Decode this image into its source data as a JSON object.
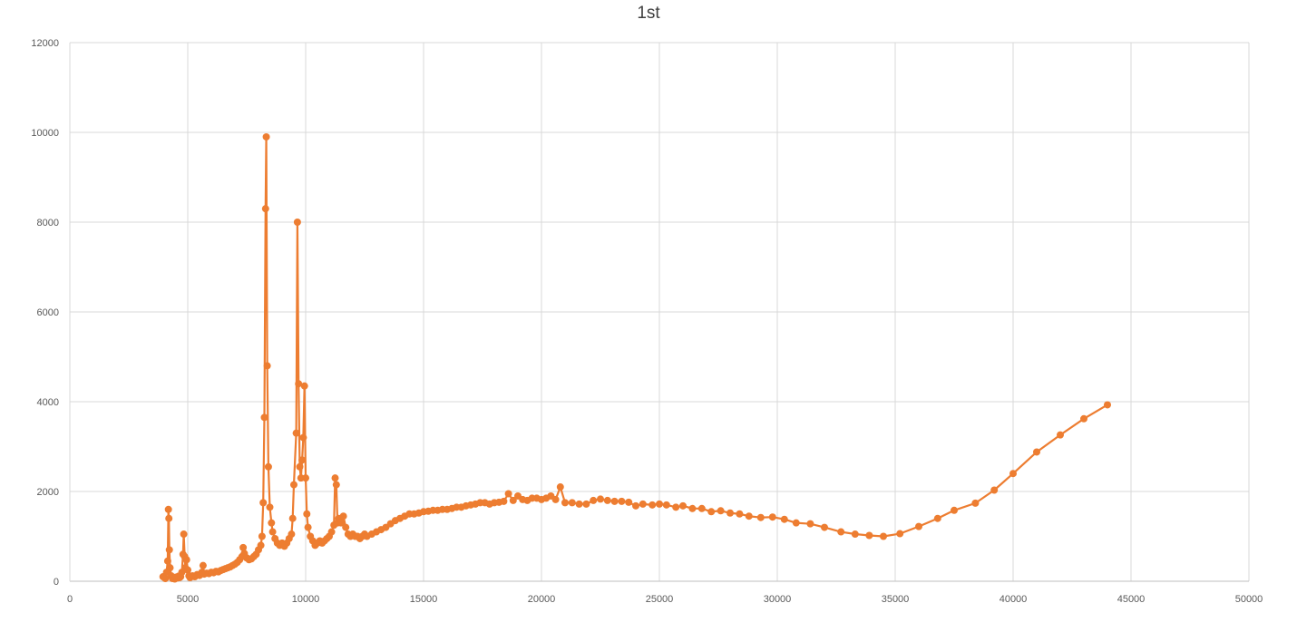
{
  "chart_data": {
    "type": "scatter",
    "title": "1st",
    "xlabel": "",
    "ylabel": "",
    "xlim": [
      0,
      50000
    ],
    "ylim": [
      0,
      12000
    ],
    "x_ticks": [
      "0",
      "5000",
      "10000",
      "15000",
      "20000",
      "25000",
      "30000",
      "35000",
      "40000",
      "45000",
      "50000"
    ],
    "y_ticks": [
      "0",
      "2000",
      "4000",
      "6000",
      "8000",
      "10000",
      "12000"
    ],
    "grid": true,
    "legend": "none",
    "line_color": "#ed7d31",
    "series": [
      {
        "points": [
          [
            3950,
            100
          ],
          [
            4050,
            60
          ],
          [
            4100,
            200
          ],
          [
            4150,
            450
          ],
          [
            4180,
            1600
          ],
          [
            4200,
            1400
          ],
          [
            4220,
            700
          ],
          [
            4250,
            300
          ],
          [
            4300,
            120
          ],
          [
            4350,
            60
          ],
          [
            4400,
            80
          ],
          [
            4450,
            50
          ],
          [
            4500,
            90
          ],
          [
            4550,
            70
          ],
          [
            4600,
            110
          ],
          [
            4650,
            80
          ],
          [
            4700,
            100
          ],
          [
            4750,
            200
          ],
          [
            4800,
            600
          ],
          [
            4830,
            1050
          ],
          [
            4870,
            550
          ],
          [
            4900,
            300
          ],
          [
            4950,
            480
          ],
          [
            5000,
            250
          ],
          [
            5050,
            120
          ],
          [
            5100,
            80
          ],
          [
            5200,
            120
          ],
          [
            5300,
            100
          ],
          [
            5400,
            150
          ],
          [
            5500,
            130
          ],
          [
            5600,
            200
          ],
          [
            5650,
            350
          ],
          [
            5700,
            160
          ],
          [
            5800,
            180
          ],
          [
            5900,
            170
          ],
          [
            6000,
            200
          ],
          [
            6100,
            190
          ],
          [
            6200,
            220
          ],
          [
            6300,
            210
          ],
          [
            6400,
            240
          ],
          [
            6500,
            260
          ],
          [
            6600,
            280
          ],
          [
            6700,
            300
          ],
          [
            6800,
            320
          ],
          [
            6900,
            350
          ],
          [
            7000,
            380
          ],
          [
            7100,
            420
          ],
          [
            7200,
            480
          ],
          [
            7300,
            550
          ],
          [
            7350,
            750
          ],
          [
            7400,
            620
          ],
          [
            7500,
            520
          ],
          [
            7600,
            480
          ],
          [
            7700,
            500
          ],
          [
            7800,
            550
          ],
          [
            7900,
            600
          ],
          [
            8000,
            700
          ],
          [
            8100,
            800
          ],
          [
            8150,
            1000
          ],
          [
            8200,
            1750
          ],
          [
            8250,
            3650
          ],
          [
            8300,
            8300
          ],
          [
            8330,
            9900
          ],
          [
            8370,
            4800
          ],
          [
            8420,
            2550
          ],
          [
            8480,
            1650
          ],
          [
            8550,
            1300
          ],
          [
            8600,
            1100
          ],
          [
            8700,
            950
          ],
          [
            8800,
            850
          ],
          [
            8900,
            800
          ],
          [
            9000,
            850
          ],
          [
            9100,
            780
          ],
          [
            9200,
            850
          ],
          [
            9300,
            950
          ],
          [
            9400,
            1050
          ],
          [
            9450,
            1400
          ],
          [
            9500,
            2150
          ],
          [
            9600,
            3300
          ],
          [
            9650,
            8000
          ],
          [
            9700,
            4400
          ],
          [
            9750,
            2550
          ],
          [
            9800,
            2300
          ],
          [
            9850,
            2700
          ],
          [
            9900,
            3200
          ],
          [
            9950,
            4350
          ],
          [
            10000,
            2300
          ],
          [
            10050,
            1500
          ],
          [
            10100,
            1200
          ],
          [
            10200,
            1000
          ],
          [
            10300,
            900
          ],
          [
            10400,
            800
          ],
          [
            10500,
            850
          ],
          [
            10600,
            900
          ],
          [
            10700,
            850
          ],
          [
            10800,
            900
          ],
          [
            10900,
            950
          ],
          [
            11000,
            1000
          ],
          [
            11100,
            1100
          ],
          [
            11200,
            1250
          ],
          [
            11250,
            2300
          ],
          [
            11300,
            2150
          ],
          [
            11350,
            1300
          ],
          [
            11400,
            1400
          ],
          [
            11500,
            1300
          ],
          [
            11600,
            1450
          ],
          [
            11700,
            1200
          ],
          [
            11800,
            1050
          ],
          [
            11900,
            1000
          ],
          [
            12000,
            1050
          ],
          [
            12100,
            1000
          ],
          [
            12200,
            1000
          ],
          [
            12300,
            950
          ],
          [
            12400,
            1000
          ],
          [
            12500,
            1050
          ],
          [
            12600,
            1000
          ],
          [
            12800,
            1050
          ],
          [
            13000,
            1100
          ],
          [
            13200,
            1150
          ],
          [
            13400,
            1200
          ],
          [
            13600,
            1280
          ],
          [
            13800,
            1350
          ],
          [
            14000,
            1400
          ],
          [
            14200,
            1450
          ],
          [
            14400,
            1500
          ],
          [
            14600,
            1500
          ],
          [
            14800,
            1520
          ],
          [
            15000,
            1550
          ],
          [
            15200,
            1560
          ],
          [
            15400,
            1580
          ],
          [
            15600,
            1580
          ],
          [
            15800,
            1600
          ],
          [
            16000,
            1600
          ],
          [
            16200,
            1620
          ],
          [
            16400,
            1650
          ],
          [
            16600,
            1650
          ],
          [
            16800,
            1680
          ],
          [
            17000,
            1700
          ],
          [
            17200,
            1720
          ],
          [
            17400,
            1750
          ],
          [
            17600,
            1750
          ],
          [
            17800,
            1720
          ],
          [
            18000,
            1750
          ],
          [
            18200,
            1760
          ],
          [
            18400,
            1780
          ],
          [
            18600,
            1950
          ],
          [
            18800,
            1800
          ],
          [
            19000,
            1900
          ],
          [
            19200,
            1820
          ],
          [
            19400,
            1800
          ],
          [
            19600,
            1850
          ],
          [
            19800,
            1850
          ],
          [
            20000,
            1820
          ],
          [
            20200,
            1850
          ],
          [
            20400,
            1900
          ],
          [
            20600,
            1820
          ],
          [
            20800,
            2100
          ],
          [
            21000,
            1750
          ],
          [
            21300,
            1750
          ],
          [
            21600,
            1720
          ],
          [
            21900,
            1720
          ],
          [
            22200,
            1800
          ],
          [
            22500,
            1830
          ],
          [
            22800,
            1800
          ],
          [
            23100,
            1780
          ],
          [
            23400,
            1780
          ],
          [
            23700,
            1760
          ],
          [
            24000,
            1680
          ],
          [
            24300,
            1720
          ],
          [
            24700,
            1700
          ],
          [
            25000,
            1720
          ],
          [
            25300,
            1700
          ],
          [
            25700,
            1650
          ],
          [
            26000,
            1680
          ],
          [
            26400,
            1620
          ],
          [
            26800,
            1620
          ],
          [
            27200,
            1550
          ],
          [
            27600,
            1570
          ],
          [
            28000,
            1520
          ],
          [
            28400,
            1500
          ],
          [
            28800,
            1450
          ],
          [
            29300,
            1420
          ],
          [
            29800,
            1430
          ],
          [
            30300,
            1380
          ],
          [
            30800,
            1300
          ],
          [
            31400,
            1280
          ],
          [
            32000,
            1200
          ],
          [
            32700,
            1100
          ],
          [
            33300,
            1050
          ],
          [
            33900,
            1020
          ],
          [
            34500,
            1000
          ],
          [
            35200,
            1060
          ],
          [
            36000,
            1220
          ],
          [
            36800,
            1400
          ],
          [
            37500,
            1580
          ],
          [
            38400,
            1740
          ],
          [
            39200,
            2030
          ],
          [
            40000,
            2400
          ],
          [
            41000,
            2880
          ],
          [
            42000,
            3260
          ],
          [
            43000,
            3620
          ],
          [
            44000,
            3930
          ]
        ]
      }
    ]
  }
}
